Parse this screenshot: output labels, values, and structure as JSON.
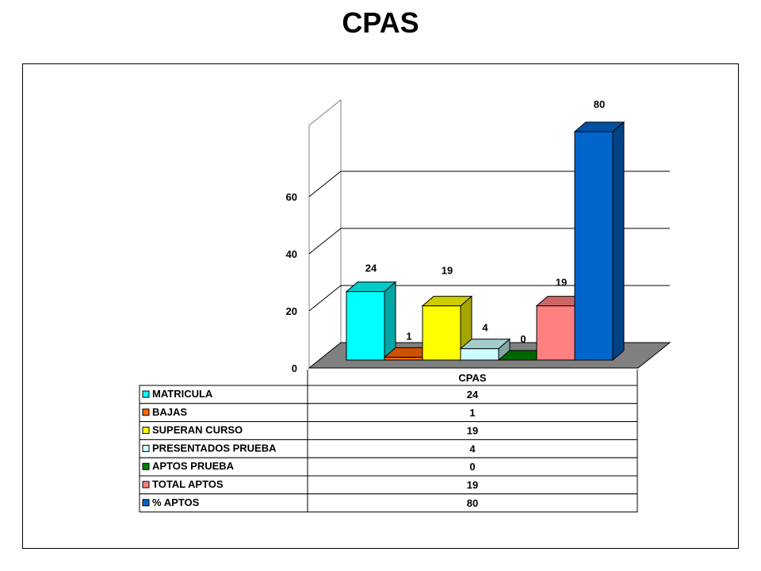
{
  "chart_data": {
    "type": "bar",
    "title": "CPAS",
    "categories": [
      "CPAS"
    ],
    "series": [
      {
        "name": "MATRICULA",
        "values": [
          24
        ],
        "color": "#00FFFF"
      },
      {
        "name": "BAJAS",
        "values": [
          1
        ],
        "color": "#FF6600"
      },
      {
        "name": "SUPERAN CURSO",
        "values": [
          19
        ],
        "color": "#FFFF00"
      },
      {
        "name": "PRESENTADOS PRUEBA",
        "values": [
          4
        ],
        "color": "#CCFFFF"
      },
      {
        "name": "APTOS PRUEBA",
        "values": [
          0
        ],
        "color": "#008000"
      },
      {
        "name": "TOTAL APTOS",
        "values": [
          19
        ],
        "color": "#FF8080"
      },
      {
        "name": "% APTOS",
        "values": [
          80
        ],
        "color": "#0066CC"
      }
    ],
    "y_ticks": [
      0,
      20,
      40,
      60
    ],
    "ylim": [
      0,
      80
    ],
    "grid": true,
    "three_d": true,
    "legend_placement": "data-table below chart"
  }
}
